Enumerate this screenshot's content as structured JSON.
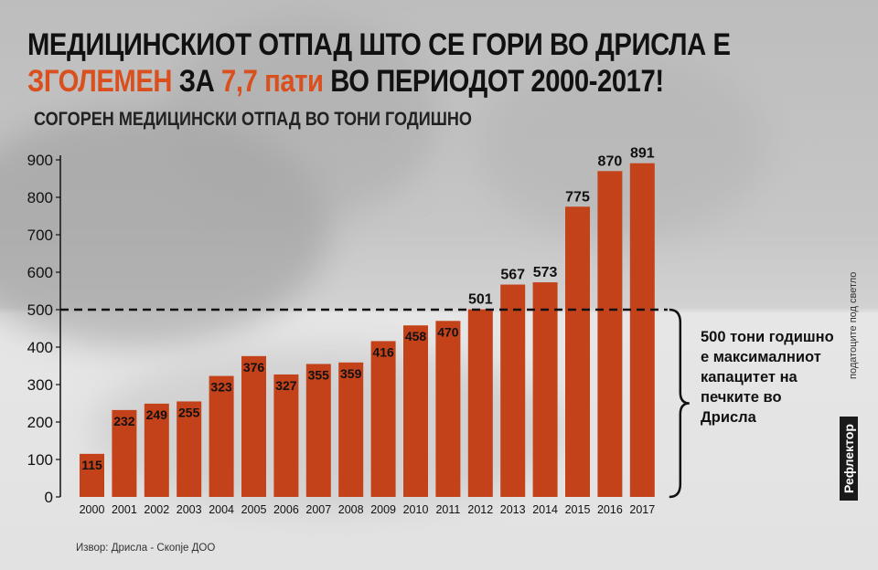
{
  "header": {
    "title_line1": "МЕДИЦИНСКИОТ ОТПАД ШТО СЕ ГОРИ ВО ДРИСЛА Е",
    "title_line2_highlight1": "ЗГОЛЕМЕН",
    "title_line2_part1": " ЗА ",
    "title_line2_highlight2": "7,7 пати",
    "title_line2_part2": " ВО ПЕРИОДОТ 2000-2017!",
    "subtitle": "СОГОРЕН МЕДИЦИНСКИ ОТПАД ВО ТОНИ ГОДИШНО"
  },
  "colors": {
    "accent": "#d9501e",
    "bar": "#c4421a"
  },
  "chart_data": {
    "type": "bar",
    "categories": [
      "2000",
      "2001",
      "2002",
      "2003",
      "2004",
      "2005",
      "2006",
      "2007",
      "2008",
      "2009",
      "2010",
      "2011",
      "2012",
      "2013",
      "2014",
      "2015",
      "2016",
      "2017"
    ],
    "values": [
      115,
      232,
      249,
      255,
      323,
      376,
      327,
      355,
      359,
      416,
      458,
      470,
      501,
      567,
      573,
      775,
      870,
      891
    ],
    "ylim": [
      0,
      900
    ],
    "yticks": [
      0,
      100,
      200,
      300,
      400,
      500,
      600,
      700,
      800,
      900
    ],
    "reference_line": 500,
    "title": "",
    "xlabel": "",
    "ylabel": ""
  },
  "annotation": {
    "bracket_note": "500 тони годишно е максималниот капацитет на печките во Дрисла"
  },
  "footer": {
    "source": "Извор: Дрисла - Скопје ДОО",
    "side_note": "податоците под светло",
    "brand": "Рефлектор"
  }
}
